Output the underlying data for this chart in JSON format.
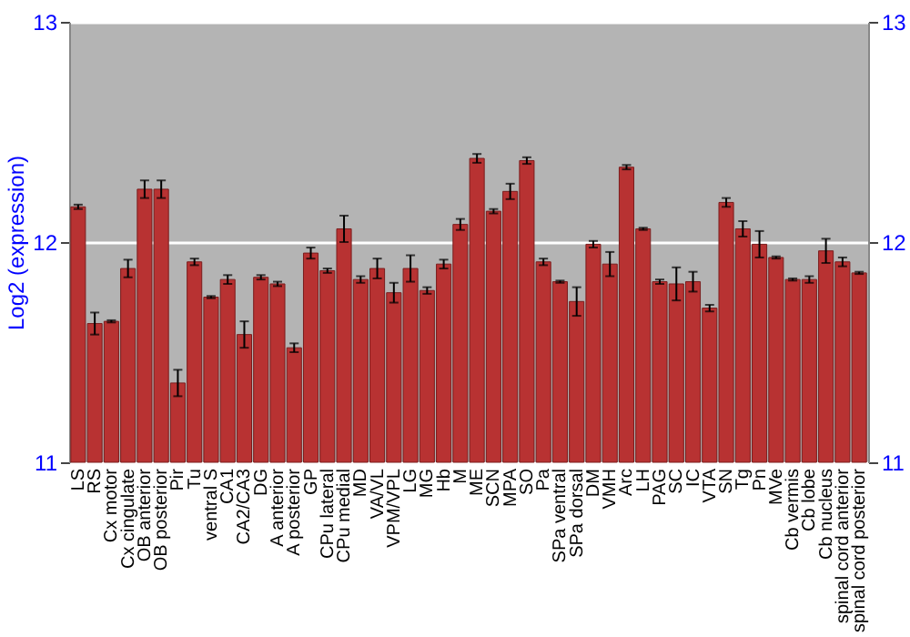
{
  "chart_data": {
    "type": "bar",
    "ylabel": "Log2 (expression)",
    "categories": [
      "LS",
      "RS",
      "Cx motor",
      "Cx cingulate",
      "OB anterior",
      "OB posterior",
      "Pir",
      "Tu",
      "ventral S",
      "CA1",
      "CA2/CA3",
      "DG",
      "A anterior",
      "A posterior",
      "GP",
      "CPu lateral",
      "CPu medial",
      "MD",
      "VA/VL",
      "VPM/VPL",
      "LG",
      "MG",
      "Hb",
      "M",
      "ME",
      "SCN",
      "MPA",
      "SO",
      "Pa",
      "SPa ventral",
      "SPa dorsal",
      "DM",
      "VMH",
      "Arc",
      "LH",
      "PAG",
      "SC",
      "IC",
      "VTA",
      "SN",
      "Tg",
      "Pn",
      "MVe",
      "Cb vermis",
      "Cb lobe",
      "Cb nucleus",
      "spinal cord anterior",
      "spinal cord posterior"
    ],
    "values": [
      12.16,
      11.63,
      11.64,
      11.88,
      12.24,
      12.24,
      11.36,
      11.91,
      11.75,
      11.83,
      11.58,
      11.84,
      11.81,
      11.52,
      11.95,
      11.87,
      12.06,
      11.83,
      11.88,
      11.77,
      11.88,
      11.78,
      11.9,
      12.08,
      12.38,
      12.14,
      12.23,
      12.37,
      11.91,
      11.82,
      11.73,
      11.99,
      11.9,
      12.34,
      12.06,
      11.82,
      11.81,
      11.82,
      11.7,
      12.18,
      12.06,
      11.99,
      11.93,
      11.83,
      11.83,
      11.96,
      11.91,
      11.86
    ],
    "errors": [
      0.01,
      0.05,
      0.005,
      0.04,
      0.04,
      0.04,
      0.06,
      0.015,
      0.005,
      0.02,
      0.06,
      0.01,
      0.01,
      0.02,
      0.025,
      0.01,
      0.06,
      0.015,
      0.045,
      0.045,
      0.06,
      0.015,
      0.02,
      0.025,
      0.02,
      0.01,
      0.035,
      0.015,
      0.015,
      0.005,
      0.065,
      0.015,
      0.055,
      0.01,
      0.005,
      0.01,
      0.075,
      0.045,
      0.015,
      0.02,
      0.035,
      0.06,
      0.005,
      0.005,
      0.015,
      0.055,
      0.02,
      0.005
    ],
    "color": "#b83232",
    "ylim": [
      11,
      13
    ],
    "yticks": [
      11,
      12,
      13
    ],
    "y2lim": [
      11,
      13
    ],
    "y2ticks": [
      11,
      12,
      13
    ],
    "grid": "y"
  }
}
